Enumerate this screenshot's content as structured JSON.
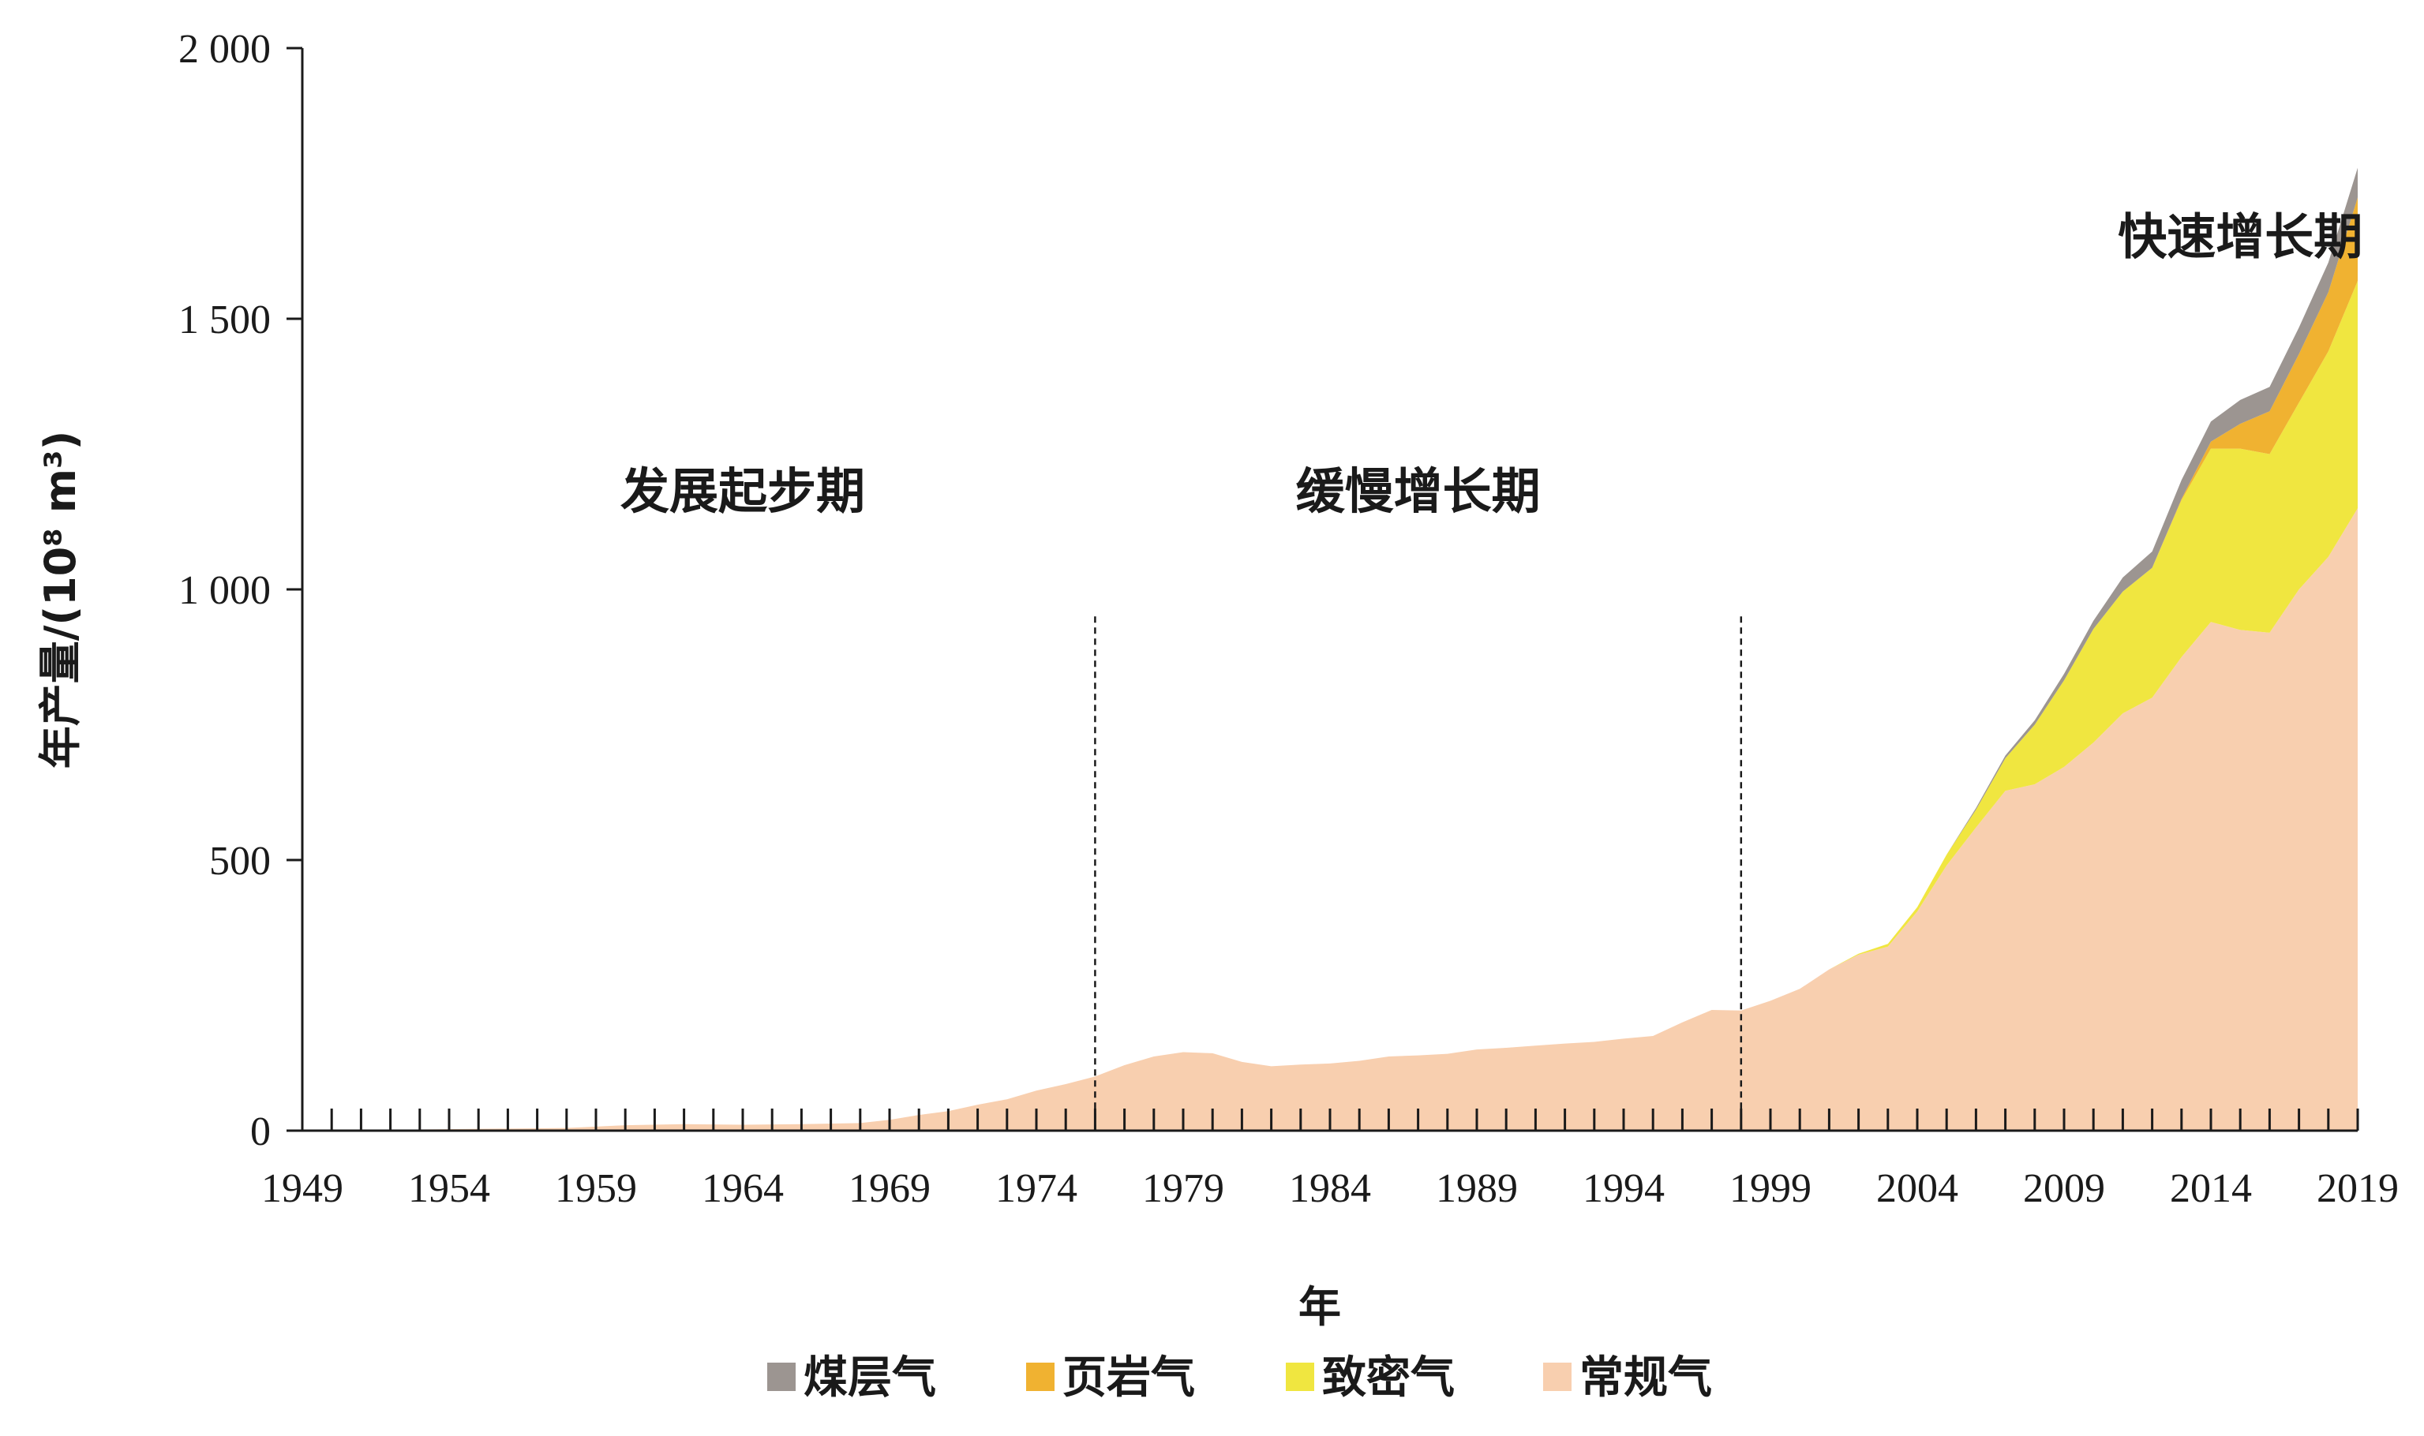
{
  "chart_data": {
    "type": "area",
    "stacked": true,
    "xlabel": "年",
    "ylabel": "年产量/(10⁸ m³)",
    "xlim": [
      1949,
      2019
    ],
    "ylim": [
      0,
      2000
    ],
    "yticks": [
      0,
      500,
      1000,
      1500,
      2000
    ],
    "ytick_labels": [
      "0",
      "500",
      "1 000",
      "1 500",
      "2 000"
    ],
    "xticks": [
      1949,
      1954,
      1959,
      1964,
      1969,
      1974,
      1979,
      1984,
      1989,
      1994,
      1999,
      2004,
      2009,
      2014,
      2019
    ],
    "xtick_labels": [
      "1949",
      "1954",
      "1959",
      "1964",
      "1969",
      "1974",
      "1979",
      "1984",
      "1989",
      "1994",
      "1999",
      "2004",
      "2009",
      "2014",
      "2019"
    ],
    "grid": false,
    "legend_position": "bottom",
    "phases": [
      {
        "label": "发展起步期",
        "x_center": 1964,
        "y": 1150
      },
      {
        "label": "缓慢增长期",
        "x_center": 1987,
        "y": 1150,
        "start_line": 1976
      },
      {
        "label": "快速增长期",
        "x_center": 2015,
        "y": 1620,
        "start_line": 1998
      }
    ],
    "x": [
      1949,
      1958,
      1960,
      1962,
      1964,
      1966,
      1968,
      1969,
      1970,
      1971,
      1972,
      1973,
      1974,
      1975,
      1976,
      1977,
      1978,
      1979,
      1980,
      1981,
      1982,
      1983,
      1984,
      1985,
      1986,
      1987,
      1988,
      1989,
      1990,
      1991,
      1992,
      1993,
      1994,
      1995,
      1996,
      1997,
      1998,
      1999,
      2000,
      2001,
      2002,
      2003,
      2004,
      2005,
      2006,
      2007,
      2008,
      2009,
      2010,
      2011,
      2012,
      2013,
      2014,
      2015,
      2016,
      2017,
      2018,
      2019
    ],
    "series": [
      {
        "name": "常规气",
        "color": "#f8cfaf",
        "values": [
          0,
          5,
          10,
          12,
          11,
          12,
          14,
          20,
          29,
          36,
          48,
          58,
          74,
          86,
          100,
          121,
          137,
          145,
          143,
          127,
          119,
          122,
          124,
          129,
          137,
          139,
          142,
          150,
          153,
          157,
          161,
          164,
          170,
          175,
          200,
          223,
          222,
          240,
          262,
          298,
          325,
          340,
          405,
          490,
          560,
          628,
          640,
          672,
          717,
          771,
          800,
          875,
          940,
          925,
          920,
          1000,
          1060,
          1150
        ]
      },
      {
        "name": "致密气",
        "color": "#f0e640",
        "values": [
          0,
          0,
          0,
          0,
          0,
          0,
          0,
          0,
          0,
          0,
          0,
          0,
          0,
          0,
          0,
          0,
          0,
          0,
          0,
          0,
          0,
          0,
          0,
          0,
          0,
          0,
          0,
          0,
          0,
          0,
          0,
          0,
          0,
          0,
          0,
          0,
          0,
          0,
          0,
          0,
          2,
          5,
          8,
          20,
          33,
          60,
          110,
          160,
          210,
          225,
          240,
          290,
          320,
          335,
          330,
          345,
          380,
          420
        ]
      },
      {
        "name": "页岩气",
        "color": "#f0b231",
        "values": [
          0,
          0,
          0,
          0,
          0,
          0,
          0,
          0,
          0,
          0,
          0,
          0,
          0,
          0,
          0,
          0,
          0,
          0,
          0,
          0,
          0,
          0,
          0,
          0,
          0,
          0,
          0,
          0,
          0,
          0,
          0,
          0,
          0,
          0,
          0,
          0,
          0,
          0,
          0,
          0,
          0,
          0,
          0,
          0,
          0,
          0,
          0,
          0,
          0,
          0,
          0,
          2,
          13,
          46,
          79,
          90,
          109,
          154
        ]
      },
      {
        "name": "煤层气",
        "color": "#9c9591",
        "values": [
          0,
          0,
          0,
          0,
          0,
          0,
          0,
          0,
          0,
          0,
          0,
          0,
          0,
          0,
          0,
          0,
          0,
          0,
          0,
          0,
          0,
          0,
          0,
          0,
          0,
          0,
          0,
          0,
          0,
          0,
          0,
          0,
          0,
          0,
          0,
          0,
          0,
          0,
          0,
          0,
          0,
          0,
          0,
          0,
          3,
          5,
          8,
          12,
          15,
          26,
          30,
          35,
          37,
          44,
          45,
          49,
          55,
          55
        ]
      }
    ],
    "legend_order": [
      "煤层气",
      "页岩气",
      "致密气",
      "常规气"
    ]
  }
}
